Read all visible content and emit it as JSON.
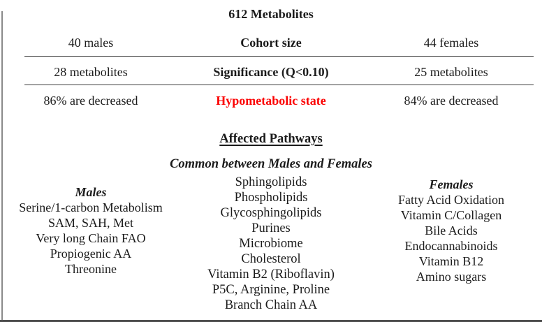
{
  "colors": {
    "highlight_red": "#fb0000",
    "text": "#1b1b1b",
    "rule": "#3d3d3d"
  },
  "summary": {
    "title": "612 Metabolites",
    "rows": [
      {
        "left": "40 males",
        "center": "Cohort size",
        "right": "44 females"
      },
      {
        "left": "28 metabolites",
        "center": "Significance (Q<0.10)",
        "right": "25 metabolites"
      },
      {
        "left": "86% are decreased",
        "center": "Hypometabolic state",
        "right": "84% are decreased"
      }
    ]
  },
  "pathways": {
    "heading": "Affected Pathways",
    "common_label": "Common between Males and Females",
    "males_label": "Males",
    "females_label": "Females",
    "males_items": [
      "Serine/1-carbon Metabolism",
      "SAM, SAH, Met",
      "Very long Chain FAO",
      "Propiogenic AA",
      "Threonine"
    ],
    "common_items": [
      "Sphingolipids",
      "Phospholipids",
      "Glycosphingolipids",
      "Purines",
      "Microbiome",
      "Cholesterol",
      "Vitamin B2 (Riboflavin)",
      "P5C, Arginine, Proline",
      "Branch Chain AA"
    ],
    "females_items": [
      "Fatty Acid Oxidation",
      "Vitamin C/Collagen",
      "Bile Acids",
      "Endocannabinoids",
      "Vitamin B12",
      "Amino sugars"
    ]
  }
}
